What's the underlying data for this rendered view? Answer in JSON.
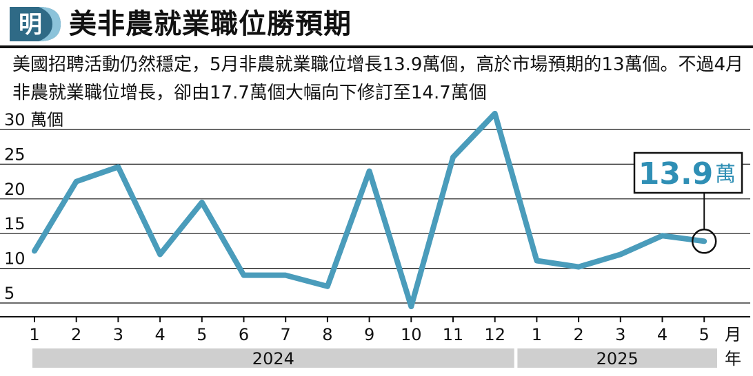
{
  "header": {
    "logo_text": "明",
    "title": "美非農就業職位勝預期",
    "subtitle": "美國招聘活動仍然穩定，5月非農就業職位增長13.9萬個，高於市場預期的13萬個。不過4月非農就業職位增長，卻由17.7萬個大幅向下修訂至14.7萬個"
  },
  "callout": {
    "value": "13.9",
    "unit": "萬"
  },
  "colors": {
    "line": "#4a9cbb",
    "callout_value": "#2f8fb5",
    "year_band": "#cfcfcf",
    "grid": "#111111",
    "logo": "#2f6a86"
  },
  "chart_data": {
    "type": "line",
    "title": "美非農就業職位勝預期",
    "xlabel": "月",
    "ylabel": "萬個",
    "ylim": [
      3,
      30
    ],
    "yticks": [
      5,
      10,
      15,
      20,
      25,
      30
    ],
    "ytick_labels": [
      "5",
      "10",
      "15",
      "20",
      "25",
      "30 萬個"
    ],
    "x_unit_label": "月",
    "year_unit_label": "年",
    "grid": true,
    "categories": [
      "1",
      "2",
      "3",
      "4",
      "5",
      "6",
      "7",
      "8",
      "9",
      "10",
      "11",
      "12",
      "1",
      "2",
      "3",
      "4",
      "5"
    ],
    "year_groups": [
      {
        "label": "2024",
        "count": 12
      },
      {
        "label": "2025",
        "count": 5
      }
    ],
    "series": [
      {
        "values": [
          12.5,
          22.5,
          24.6,
          12.0,
          19.5,
          9.0,
          9.0,
          7.4,
          24.0,
          4.5,
          26.0,
          32.3,
          11.1,
          10.2,
          12.0,
          14.7,
          13.9
        ]
      }
    ],
    "highlight": {
      "index": 16,
      "label": "13.9萬"
    }
  }
}
